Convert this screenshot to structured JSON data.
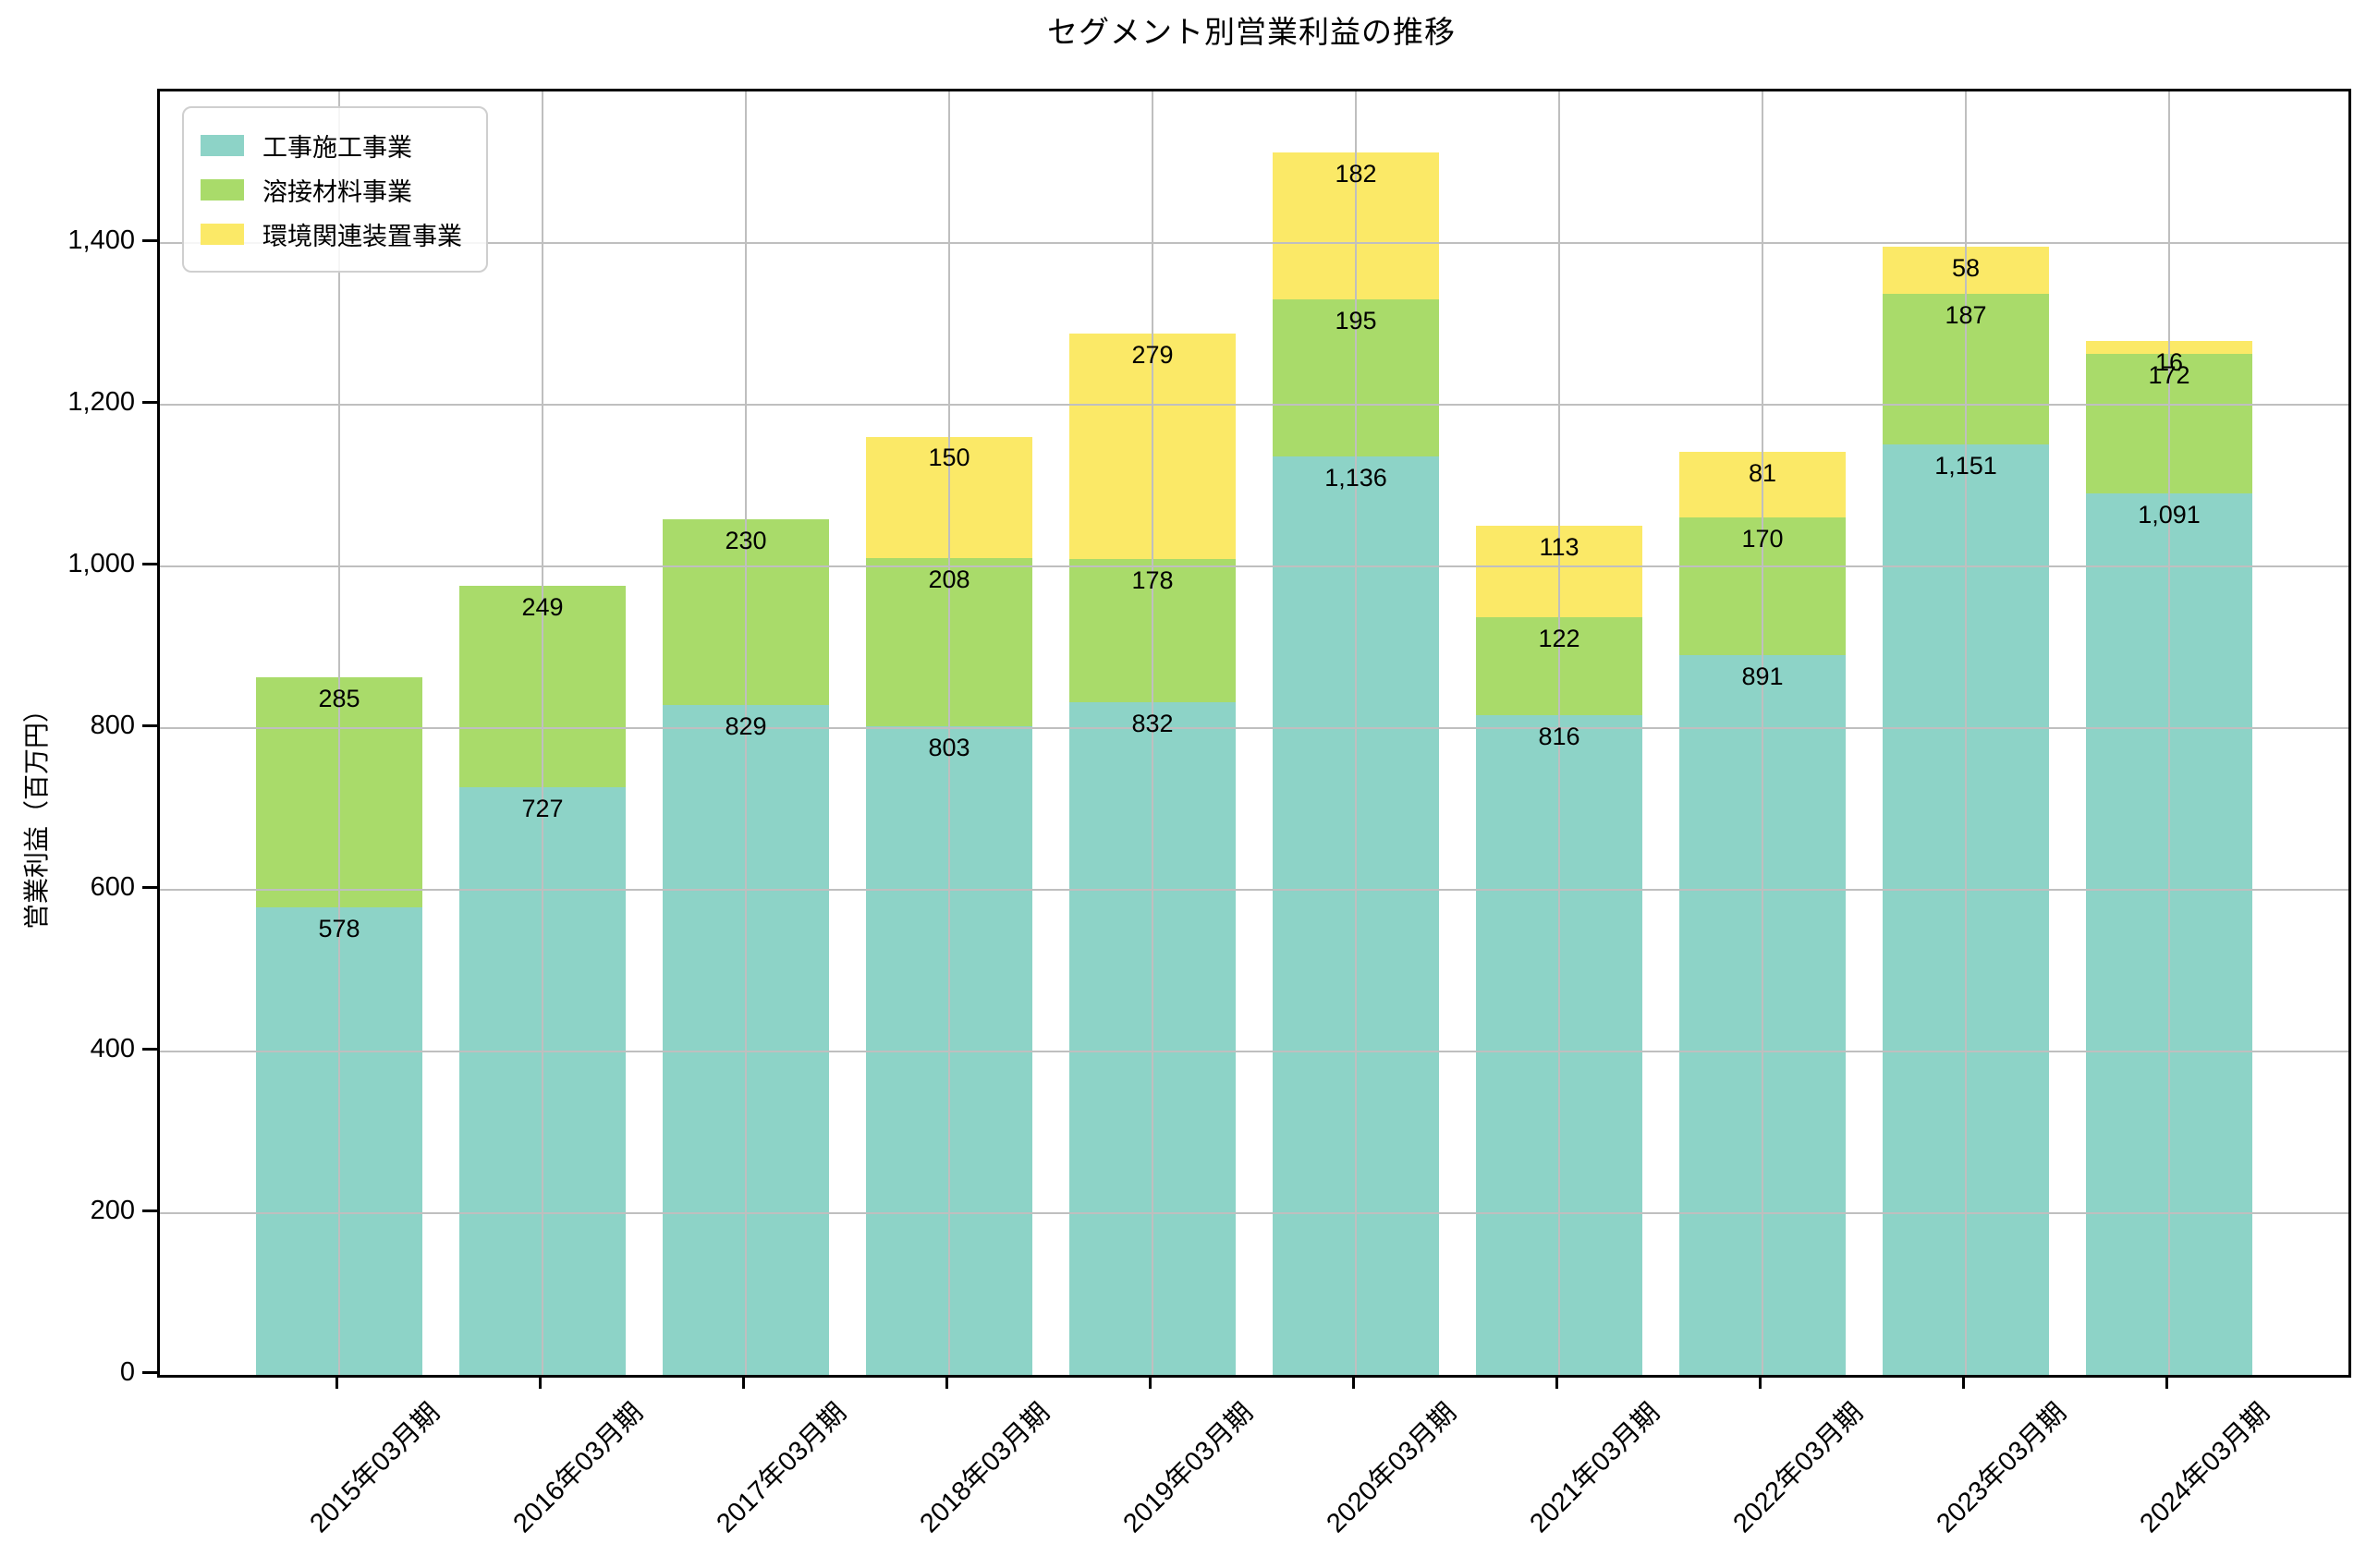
{
  "title": "セグメント別営業利益の推移",
  "chart_data": {
    "type": "bar",
    "stacked": true,
    "title": "セグメント別営業利益の推移",
    "xlabel": "",
    "ylabel": "営業利益（百万円）",
    "categories": [
      "2015年03月期",
      "2016年03月期",
      "2017年03月期",
      "2018年03月期",
      "2019年03月期",
      "2020年03月期",
      "2021年03月期",
      "2022年03月期",
      "2023年03月期",
      "2024年03月期"
    ],
    "series": [
      {
        "name": "工事施工事業",
        "color": "#8DD3C7",
        "values": [
          578,
          727,
          829,
          803,
          832,
          1136,
          816,
          891,
          1151,
          1091
        ],
        "value_labels": [
          "578",
          "727",
          "829",
          "803",
          "832",
          "1,136",
          "816",
          "891",
          "1,151",
          "1,091"
        ]
      },
      {
        "name": "溶接材料事業",
        "color": "#A9DB6A",
        "values": [
          285,
          249,
          230,
          208,
          178,
          195,
          122,
          170,
          187,
          172
        ],
        "value_labels": [
          "285",
          "249",
          "230",
          "208",
          "178",
          "195",
          "122",
          "170",
          "187",
          "172"
        ]
      },
      {
        "name": "環境関連装置事業",
        "color": "#FBE967",
        "values": [
          0,
          0,
          0,
          150,
          279,
          182,
          113,
          81,
          58,
          16
        ],
        "value_labels": [
          "",
          "",
          "",
          "150",
          "279",
          "182",
          "113",
          "81",
          "58",
          "16"
        ]
      }
    ],
    "totals": [
      863,
      976,
      1059,
      1161,
      1289,
      1513,
      1051,
      1142,
      1396,
      1279
    ],
    "ylim": [
      0,
      1588
    ],
    "yticks": {
      "values": [
        0,
        200,
        400,
        600,
        800,
        1000,
        1200,
        1400
      ],
      "labels": [
        "0",
        "200",
        "400",
        "600",
        "800",
        "1,000",
        "1,200",
        "1,400"
      ]
    },
    "grid": true,
    "grid_color": "#bfbfbf",
    "legend_position": "upper left",
    "legend": [
      "工事施工事業",
      "溶接材料事業",
      "環境関連装置事業"
    ]
  }
}
